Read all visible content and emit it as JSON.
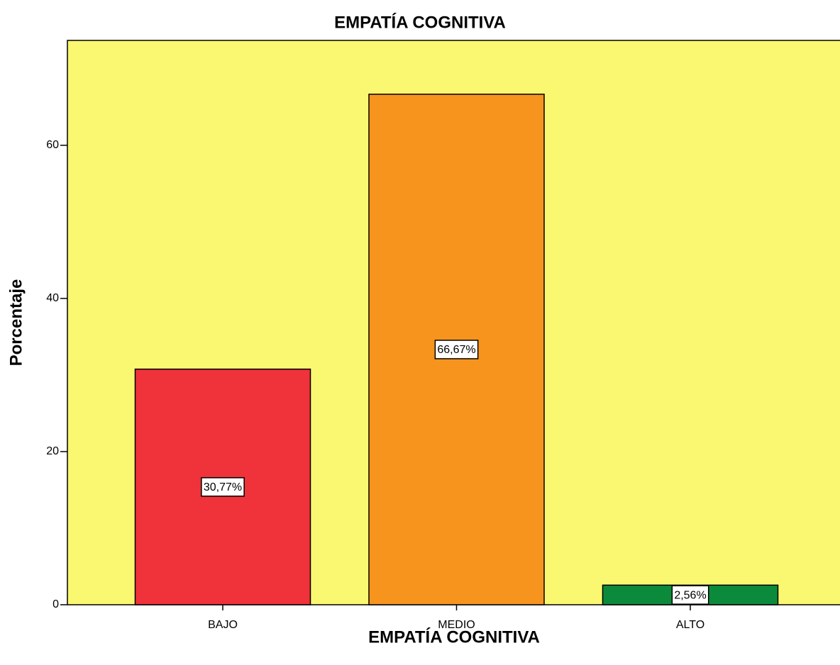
{
  "chart_data": {
    "type": "bar",
    "title": "EMPATÍA COGNITIVA",
    "x_label": "EMPATÍA COGNITIVA",
    "y_label": "Porcentaje",
    "categories": [
      "BAJO",
      "MEDIO",
      "ALTO"
    ],
    "values": [
      30.77,
      66.67,
      2.56
    ],
    "value_labels": [
      "30,77%",
      "66,67%",
      "2,56%"
    ],
    "colors": [
      "#f0323a",
      "#f7941d",
      "#0c8a3c"
    ],
    "background": "#faf870",
    "ylim": [
      0,
      73.7
    ],
    "yticks": [
      0,
      20,
      40,
      60
    ],
    "grid": false
  }
}
